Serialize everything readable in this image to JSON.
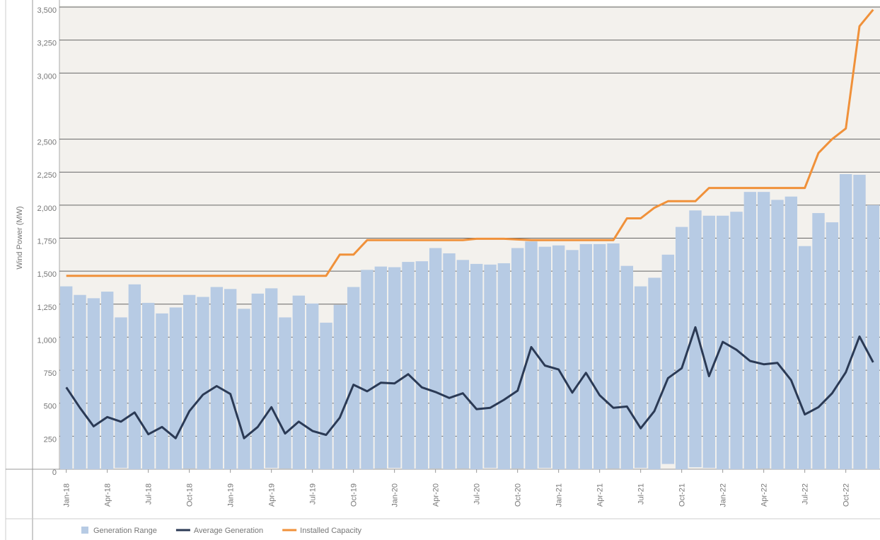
{
  "chart_data": {
    "type": "bar-line",
    "y_label": "Wind Power (MW)",
    "categories": [
      "Jan-18",
      null,
      null,
      "Apr-18",
      null,
      null,
      "Jul-18",
      null,
      null,
      "Oct-18",
      null,
      null,
      "Jan-19",
      null,
      null,
      "Apr-19",
      null,
      null,
      "Jul-19",
      null,
      null,
      "Oct-19",
      null,
      null,
      "Jan-20",
      null,
      null,
      "Apr-20",
      null,
      null,
      "Jul-20",
      null,
      null,
      "Oct-20",
      null,
      null,
      "Jan-21",
      null,
      null,
      "Apr-21",
      null,
      null,
      "Jul-21",
      null,
      null,
      "Oct-21",
      null,
      null,
      "Jan-22",
      null,
      null,
      "Apr-22",
      null,
      null,
      "Jul-22",
      null,
      null,
      "Oct-22",
      null,
      null
    ],
    "series": [
      {
        "name": "Generation Range",
        "kind": "range",
        "color": "#b7cbe4",
        "low": [
          0,
          0,
          0,
          0,
          10,
          0,
          0,
          0,
          0,
          5,
          0,
          0,
          0,
          0,
          0,
          10,
          5,
          0,
          0,
          0,
          0,
          0,
          0,
          5,
          10,
          0,
          0,
          5,
          0,
          5,
          0,
          10,
          0,
          5,
          0,
          10,
          0,
          0,
          0,
          0,
          5,
          0,
          10,
          0,
          40,
          0,
          15,
          10,
          0,
          0,
          0,
          5,
          0,
          0,
          0,
          0,
          0,
          0,
          0,
          0
        ],
        "high": [
          1385,
          1320,
          1295,
          1345,
          1150,
          1400,
          1260,
          1180,
          1225,
          1320,
          1305,
          1380,
          1365,
          1215,
          1330,
          1370,
          1150,
          1315,
          1255,
          1110,
          1245,
          1380,
          1510,
          1535,
          1530,
          1570,
          1575,
          1675,
          1635,
          1585,
          1555,
          1550,
          1560,
          1675,
          1725,
          1685,
          1695,
          1660,
          1705,
          1705,
          1710,
          1540,
          1385,
          1450,
          1625,
          1835,
          1960,
          1920,
          1920,
          1950,
          2100,
          2100,
          2040,
          2065,
          1690,
          1940,
          1870,
          2235,
          2230,
          2000
        ]
      },
      {
        "name": "Average Generation",
        "kind": "line",
        "color": "#2b3a55",
        "values": [
          620,
          465,
          325,
          395,
          360,
          430,
          265,
          320,
          235,
          440,
          565,
          630,
          570,
          235,
          320,
          470,
          270,
          360,
          290,
          260,
          390,
          640,
          590,
          655,
          650,
          720,
          620,
          585,
          540,
          575,
          455,
          465,
          525,
          595,
          925,
          785,
          755,
          580,
          730,
          560,
          465,
          475,
          310,
          440,
          690,
          765,
          1075,
          705,
          965,
          905,
          820,
          795,
          805,
          675,
          415,
          470,
          575,
          735,
          1005,
          810
        ]
      },
      {
        "name": "Installed Capacity",
        "kind": "line",
        "color": "#f0913a",
        "values": [
          1465,
          1465,
          1465,
          1465,
          1465,
          1465,
          1465,
          1465,
          1465,
          1465,
          1465,
          1465,
          1465,
          1465,
          1465,
          1465,
          1465,
          1465,
          1465,
          1465,
          1625,
          1625,
          1735,
          1735,
          1735,
          1735,
          1735,
          1735,
          1735,
          1735,
          1745,
          1745,
          1745,
          1740,
          1735,
          1735,
          1735,
          1735,
          1735,
          1735,
          1735,
          1900,
          1900,
          1980,
          2030,
          2030,
          2030,
          2130,
          2130,
          2130,
          2130,
          2130,
          2130,
          2130,
          2130,
          2395,
          2500,
          2580,
          3355,
          3480
        ]
      }
    ],
    "ylim": [
      0,
      3500
    ],
    "yticks": [
      0,
      250,
      500,
      750,
      {
        "value": 1000,
        "label": "1,000"
      },
      {
        "value": 1250,
        "label": "1,250"
      },
      {
        "value": 1500,
        "label": "1,500"
      },
      {
        "value": 1750,
        "label": "1,750"
      },
      {
        "value": 2000,
        "label": "2,000"
      },
      {
        "value": 2250,
        "label": "2,250"
      },
      {
        "value": 2500,
        "label": "2,500"
      },
      {
        "value": 3000,
        "label": "3,000"
      },
      {
        "value": 3250,
        "label": "3,250"
      },
      {
        "value": 3500,
        "label": "3,500"
      }
    ],
    "grid": true
  }
}
